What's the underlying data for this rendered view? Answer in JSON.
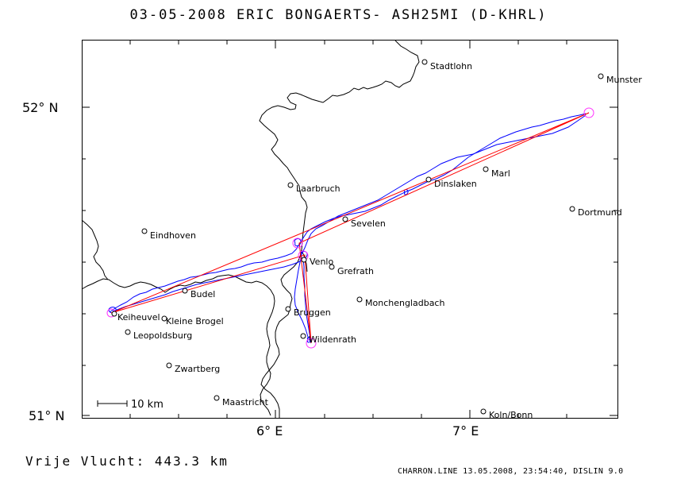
{
  "title": "03-05-2008   ERIC BONGAERTS-   ASH25MI (D-KHRL)",
  "distance_label": "Vrije Vlucht:  443.3 km",
  "footer": "CHARRON.LINE 13.05.2008, 23:54:40, DISLIN 9.0",
  "scale_bar": {
    "label": "10 km"
  },
  "axes": {
    "x_ticks": [
      {
        "label": "6° E",
        "lon": 6.0
      },
      {
        "label": "7° E",
        "lon": 7.0
      }
    ],
    "y_ticks": [
      {
        "label": "52° N",
        "lat": 52.0
      },
      {
        "label": "51° N",
        "lat": 51.0
      }
    ],
    "lon_range": [
      5.0,
      7.7
    ],
    "lat_range": [
      50.99,
      52.21
    ]
  },
  "colors": {
    "track": "#0000ff",
    "task": "#ff0000",
    "turnpoint": "#ff33ff",
    "border": "#000000"
  },
  "towns": [
    {
      "name": "Stadtlohn",
      "lon": 6.77,
      "lat": 52.15
    },
    {
      "name": "Munster",
      "lon": 7.62,
      "lat": 52.1
    },
    {
      "name": "Marl",
      "lon": 7.03,
      "lat": 51.79
    },
    {
      "name": "Dinslaken",
      "lon": 6.76,
      "lat": 51.74
    },
    {
      "name": "Laarbruch",
      "lon": 6.1,
      "lat": 51.73
    },
    {
      "name": "Dortmund",
      "lon": 7.47,
      "lat": 51.66
    },
    {
      "name": "Sevelen",
      "lon": 6.33,
      "lat": 51.62
    },
    {
      "name": "Eindhoven",
      "lon": 5.32,
      "lat": 51.59
    },
    {
      "name": "Venlo",
      "lon": 6.17,
      "lat": 51.48
    },
    {
      "name": "Grefrath",
      "lon": 6.32,
      "lat": 51.45
    },
    {
      "name": "Budel",
      "lon": 5.53,
      "lat": 51.4
    },
    {
      "name": "Monchengladbach",
      "lon": 6.44,
      "lat": 51.37
    },
    {
      "name": "Bruggen",
      "lon": 6.1,
      "lat": 51.33
    },
    {
      "name": "Keiheuvel",
      "lon": 5.16,
      "lat": 51.32
    },
    {
      "name": "Kleine Brogel",
      "lon": 5.44,
      "lat": 51.31
    },
    {
      "name": "Leopoldsburg",
      "lon": 5.23,
      "lat": 51.27
    },
    {
      "name": "Wildenrath",
      "lon": 6.16,
      "lat": 51.25
    },
    {
      "name": "Zwartberg",
      "lon": 5.43,
      "lat": 51.17
    },
    {
      "name": "Maastricht",
      "lon": 5.69,
      "lat": 51.06
    },
    {
      "name": "Koln/Bonn",
      "lon": 7.02,
      "lat": 51.02
    }
  ],
  "task": [
    {
      "lon": 5.14,
      "lat": 51.33
    },
    {
      "lon": 7.55,
      "lat": 51.97
    },
    {
      "lon": 6.07,
      "lat": 51.55
    },
    {
      "lon": 6.2,
      "lat": 51.23
    },
    {
      "lon": 6.16,
      "lat": 51.51
    },
    {
      "lon": 5.14,
      "lat": 51.33
    }
  ],
  "turnpoints": [
    {
      "lon": 5.14,
      "lat": 51.33
    },
    {
      "lon": 7.55,
      "lat": 51.97
    },
    {
      "lon": 6.07,
      "lat": 51.55
    },
    {
      "lon": 6.16,
      "lat": 51.51
    },
    {
      "lon": 6.2,
      "lat": 51.23
    }
  ]
}
